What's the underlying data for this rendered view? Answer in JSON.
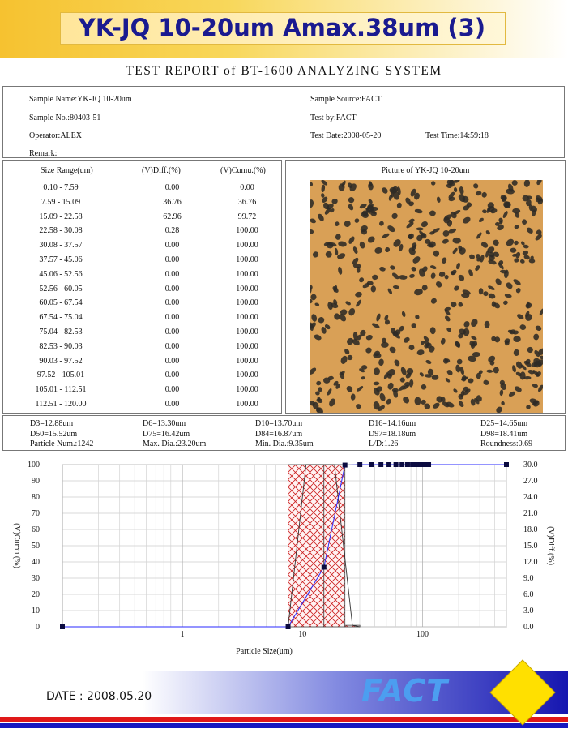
{
  "header": {
    "title": "YK-JQ 10-20um Amax.38um (3)",
    "report_title": "TEST REPORT of BT-1600 ANALYZING SYSTEM"
  },
  "info": {
    "sample_name": "Sample Name:YK-JQ 10-20um",
    "sample_source": "Sample Source:FACT",
    "sample_no": "Sample No.:80403-51",
    "test_by": "Test by:FACT",
    "operator": "Operator:ALEX",
    "test_date": "Test Date:2008-05-20",
    "test_time": "Test Time:14:59:18",
    "remark": "Remark:"
  },
  "size_table": {
    "headers": [
      "Size Range(um)",
      "(V)Diff.(%)",
      "(V)Cumu.(%)"
    ],
    "rows": [
      [
        "0.10  -  7.59",
        "0.00",
        "0.00"
      ],
      [
        "7.59  -  15.09",
        "36.76",
        "36.76"
      ],
      [
        "15.09  -  22.58",
        "62.96",
        "99.72"
      ],
      [
        "22.58  -  30.08",
        "0.28",
        "100.00"
      ],
      [
        "30.08  -  37.57",
        "0.00",
        "100.00"
      ],
      [
        "37.57  -  45.06",
        "0.00",
        "100.00"
      ],
      [
        "45.06  -  52.56",
        "0.00",
        "100.00"
      ],
      [
        "52.56  -  60.05",
        "0.00",
        "100.00"
      ],
      [
        "60.05  -  67.54",
        "0.00",
        "100.00"
      ],
      [
        "67.54  -  75.04",
        "0.00",
        "100.00"
      ],
      [
        "75.04  -  82.53",
        "0.00",
        "100.00"
      ],
      [
        "82.53  -  90.03",
        "0.00",
        "100.00"
      ],
      [
        "90.03  -  97.52",
        "0.00",
        "100.00"
      ],
      [
        "97.52  -  105.01",
        "0.00",
        "100.00"
      ],
      [
        "105.01  -  112.51",
        "0.00",
        "100.00"
      ],
      [
        "112.51  -  120.00",
        "0.00",
        "100.00"
      ]
    ]
  },
  "picture": {
    "title": "Picture of YK-JQ 10-20um",
    "background_color": "#d9a056",
    "particle_color": "#2e2a26"
  },
  "stats": [
    [
      "D3=12.88um",
      "D6=13.30um",
      "D10=13.70um",
      "D16=14.16um",
      "D25=14.65um"
    ],
    [
      "D50=15.52um",
      "D75=16.42um",
      "D84=16.87um",
      "D97=18.18um",
      "D98=18.41um"
    ],
    [
      "Particle Num.:1242",
      "Max. Dia.:23.20um",
      "Min. Dia.:9.35um",
      "L/D:1.26",
      "Roundness:0.69"
    ]
  ],
  "chart_data": {
    "type": "line",
    "xlabel": "Particle Size(um)",
    "ylabel": "(V)Cumu.(%)",
    "y2label": "(V)Diff.(%)",
    "x_scale": "log",
    "xlim": [
      0.1,
      500
    ],
    "x_ticks": [
      1,
      10,
      100
    ],
    "x_tick_labels": [
      "1",
      "10",
      "100"
    ],
    "ylim": [
      0,
      100
    ],
    "y_ticks": [
      "0",
      "10",
      "20",
      "30",
      "40",
      "50",
      "60",
      "70",
      "80",
      "90",
      "100"
    ],
    "y2lim": [
      0,
      30
    ],
    "y2_ticks": [
      "0.0",
      "3.0",
      "6.0",
      "9.0",
      "12.0",
      "15.0",
      "18.0",
      "21.0",
      "24.0",
      "27.0",
      "30.0"
    ],
    "grid": true,
    "cumulative": {
      "x": [
        0.1,
        7.59,
        15.09,
        22.58,
        30.08,
        37.57,
        45.06,
        52.56,
        60.05,
        67.54,
        75.04,
        82.53,
        90.03,
        97.52,
        105.01,
        112.51,
        500
      ],
      "y": [
        0,
        0,
        36.76,
        99.72,
        100,
        100,
        100,
        100,
        100,
        100,
        100,
        100,
        100,
        100,
        100,
        100,
        100
      ]
    },
    "histogram": [
      {
        "range": [
          7.59,
          15.09
        ],
        "value": 36.76
      },
      {
        "range": [
          15.09,
          22.58
        ],
        "value": 62.96
      },
      {
        "range": [
          22.58,
          30.08
        ],
        "value": 0.28
      }
    ],
    "colors": {
      "histogram": "#cc2222",
      "line": "#2a2aff",
      "marker": "#0b0b40"
    }
  },
  "footer": {
    "date": "DATE : 2008.05.20",
    "logo": "FACT",
    "logo_color": "#4c9ef0",
    "diamond_color": "#ffe000"
  }
}
